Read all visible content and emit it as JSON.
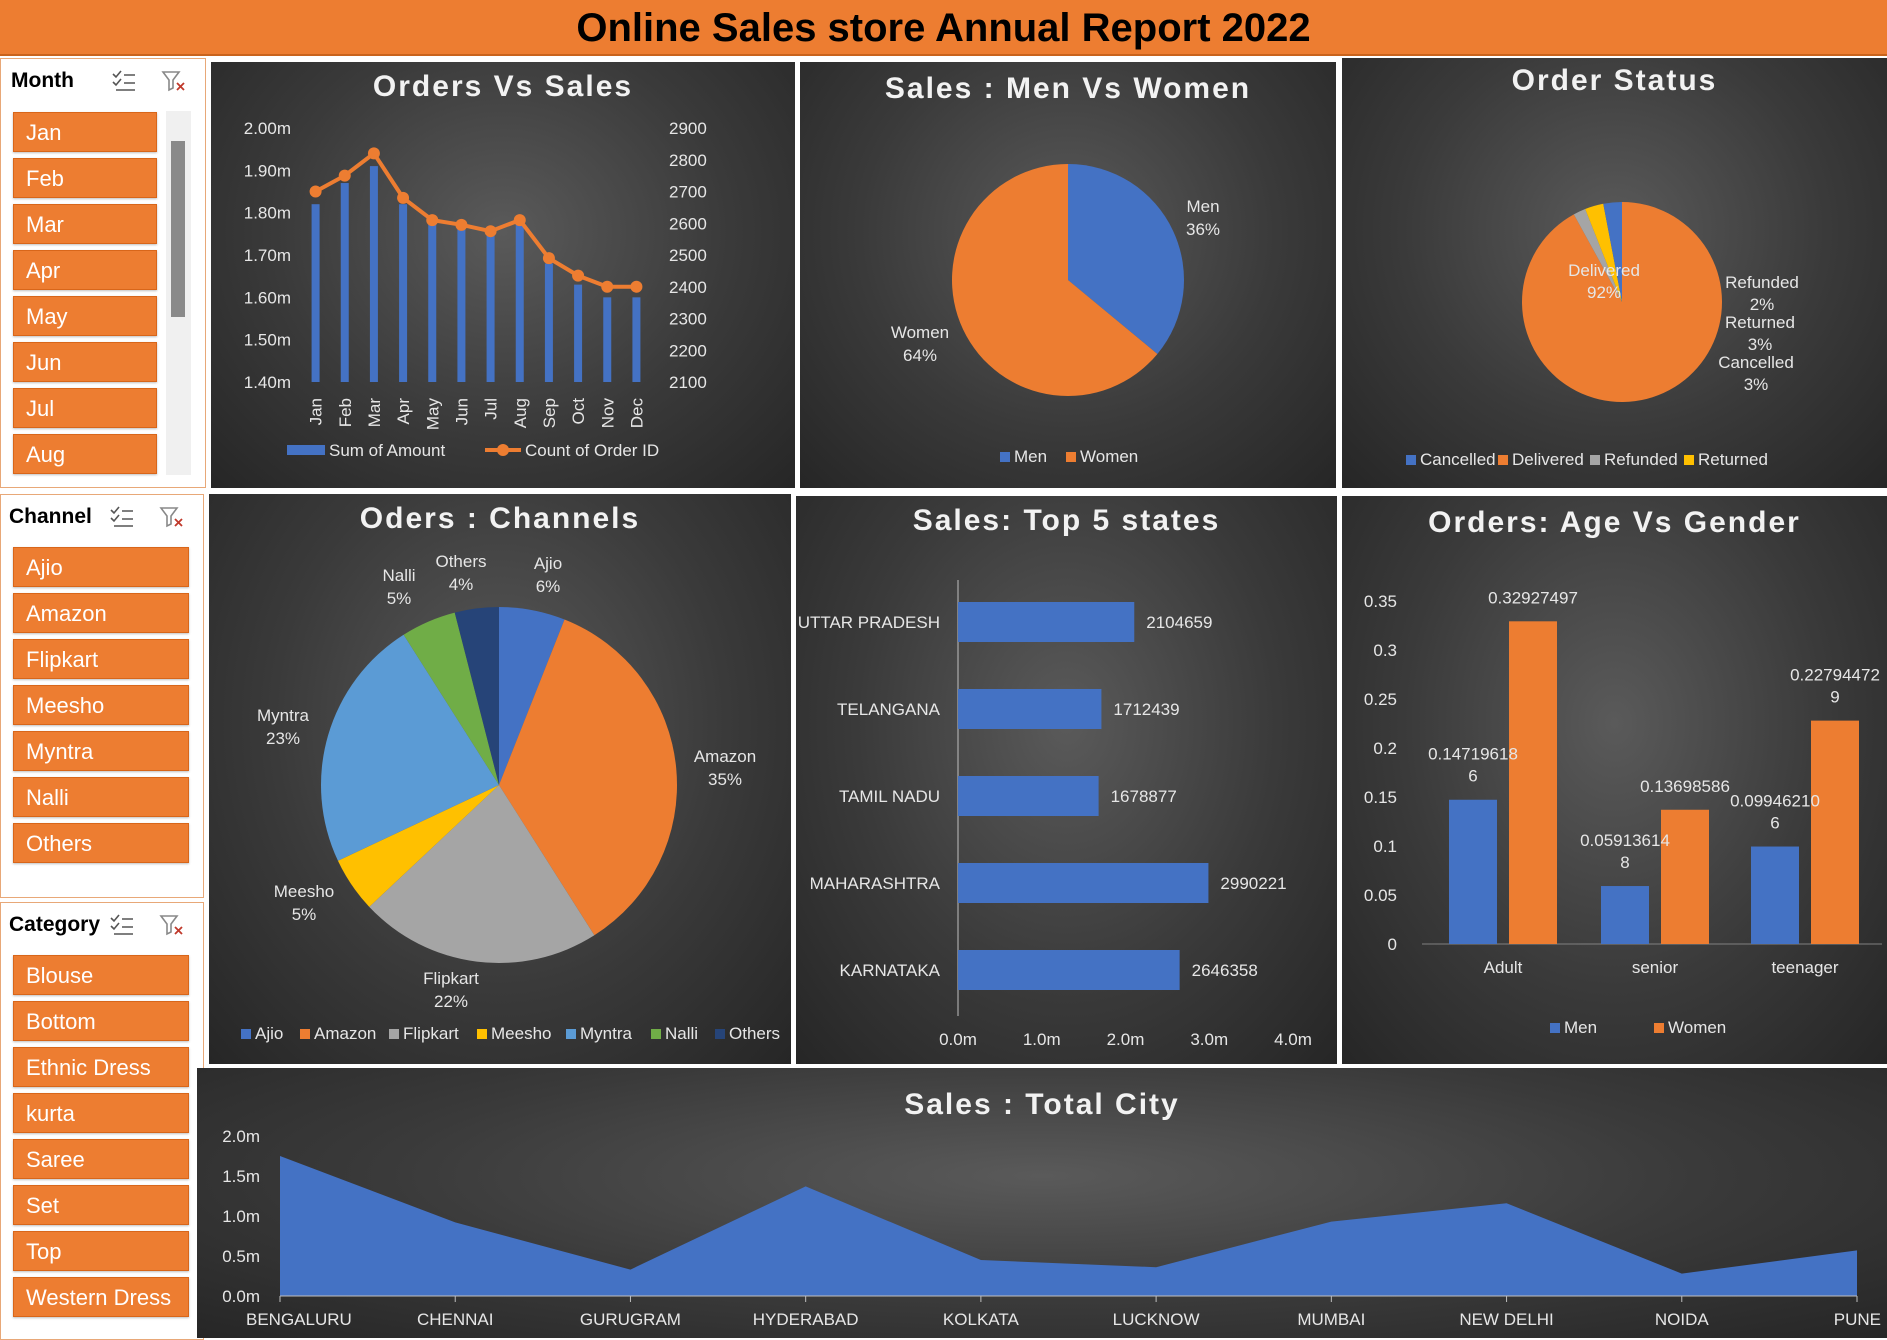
{
  "report_title": "Online Sales store Annual Report 2022",
  "colors": {
    "orange": "#ed7d31",
    "blue": "#4472c4",
    "gray": "#a5a5a5",
    "yellow": "#ffc000",
    "light_blue": "#5b9bd5",
    "green": "#70ad47",
    "dark_blue": "#264478"
  },
  "slicers": {
    "month": {
      "title": "Month",
      "items": [
        "Jan",
        "Feb",
        "Mar",
        "Apr",
        "May",
        "Jun",
        "Jul",
        "Aug"
      ]
    },
    "channel": {
      "title": "Channel",
      "items": [
        "Ajio",
        "Amazon",
        "Flipkart",
        "Meesho",
        "Myntra",
        "Nalli",
        "Others"
      ]
    },
    "category": {
      "title": "Category",
      "items": [
        "Blouse",
        "Bottom",
        "Ethnic Dress",
        "kurta",
        "Saree",
        "Set",
        "Top",
        "Western Dress"
      ]
    },
    "icons": [
      "multi-select-icon",
      "clear-filter-icon"
    ]
  },
  "chart_data": [
    {
      "id": "orders_vs_sales",
      "type": "bar",
      "title": "Orders Vs Sales",
      "categories": [
        "Jan",
        "Feb",
        "Mar",
        "Apr",
        "May",
        "Jun",
        "Jul",
        "Aug",
        "Sep",
        "Oct",
        "Nov",
        "Dec"
      ],
      "series": [
        {
          "name": "Sum of Amount",
          "type": "bar",
          "axis": "left",
          "values": [
            1.82,
            1.87,
            1.91,
            1.82,
            1.78,
            1.76,
            1.75,
            1.79,
            1.68,
            1.63,
            1.6,
            1.6
          ]
        },
        {
          "name": "Count of Order ID",
          "type": "line",
          "axis": "right",
          "values": [
            2700,
            2750,
            2820,
            2680,
            2610,
            2595,
            2575,
            2610,
            2490,
            2435,
            2400,
            2400
          ]
        }
      ],
      "y_left": {
        "ticks": [
          "1.40m",
          "1.50m",
          "1.60m",
          "1.70m",
          "1.80m",
          "1.90m",
          "2.00m"
        ],
        "range": [
          1.4,
          2.0
        ]
      },
      "y_right": {
        "ticks": [
          "2100",
          "2200",
          "2300",
          "2400",
          "2500",
          "2600",
          "2700",
          "2800",
          "2900"
        ],
        "range": [
          2100,
          2900
        ]
      },
      "legend_position": "bottom"
    },
    {
      "id": "sales_men_women",
      "type": "pie",
      "title": "Sales : Men Vs Women",
      "slices": [
        {
          "label": "Men",
          "value": 36,
          "pct": "36%",
          "color": "#4472c4"
        },
        {
          "label": "Women",
          "value": 64,
          "pct": "64%",
          "color": "#ed7d31"
        }
      ],
      "legend_position": "bottom"
    },
    {
      "id": "order_status",
      "type": "pie",
      "title": "Order Status",
      "slices": [
        {
          "label": "Delivered",
          "value": 92,
          "pct": "92%",
          "color": "#ed7d31"
        },
        {
          "label": "Refunded",
          "value": 2,
          "pct": "2%",
          "color": "#a5a5a5"
        },
        {
          "label": "Returned",
          "value": 3,
          "pct": "3%",
          "color": "#ffc000"
        },
        {
          "label": "Cancelled",
          "value": 3,
          "pct": "3%",
          "color": "#4472c4"
        }
      ],
      "legend": [
        "Cancelled",
        "Delivered",
        "Refunded",
        "Returned"
      ],
      "legend_position": "bottom"
    },
    {
      "id": "orders_channels",
      "type": "pie",
      "title": "Oders : Channels",
      "slices": [
        {
          "label": "Ajio",
          "value": 6,
          "pct": "6%",
          "color": "#4472c4"
        },
        {
          "label": "Amazon",
          "value": 35,
          "pct": "35%",
          "color": "#ed7d31"
        },
        {
          "label": "Flipkart",
          "value": 22,
          "pct": "22%",
          "color": "#a5a5a5"
        },
        {
          "label": "Meesho",
          "value": 5,
          "pct": "5%",
          "color": "#ffc000"
        },
        {
          "label": "Myntra",
          "value": 23,
          "pct": "23%",
          "color": "#5b9bd5"
        },
        {
          "label": "Nalli",
          "value": 5,
          "pct": "5%",
          "color": "#70ad47"
        },
        {
          "label": "Others",
          "value": 4,
          "pct": "4%",
          "color": "#264478"
        }
      ],
      "legend_position": "bottom"
    },
    {
      "id": "top5_states",
      "type": "bar",
      "orientation": "horizontal",
      "title": "Sales: Top 5 states",
      "categories": [
        "UTTAR PRADESH",
        "TELANGANA",
        "TAMIL NADU",
        "MAHARASHTRA",
        "KARNATAKA"
      ],
      "values": [
        2104659,
        1712439,
        1678877,
        2990221,
        2646358
      ],
      "x_ticks": [
        "0.0m",
        "1.0m",
        "2.0m",
        "3.0m",
        "4.0m"
      ],
      "x_range": [
        0,
        4000000
      ]
    },
    {
      "id": "age_vs_gender",
      "type": "bar",
      "title": "Orders: Age Vs Gender",
      "categories": [
        "Adult",
        "senior",
        "teenager"
      ],
      "series": [
        {
          "name": "Men",
          "values": [
            0.147196186,
            0.059136148,
            0.099462106
          ],
          "labels": [
            "0.14719618\n6",
            "0.05913614\n8",
            "0.09946210\n6"
          ],
          "color": "#4472c4"
        },
        {
          "name": "Women",
          "values": [
            0.32927497,
            0.13698586,
            0.227944729
          ],
          "labels": [
            "0.32927497",
            "0.13698586",
            "0.22794472\n9"
          ],
          "color": "#ed7d31"
        }
      ],
      "y_ticks": [
        "0",
        "0.05",
        "0.1",
        "0.15",
        "0.2",
        "0.25",
        "0.3",
        "0.35"
      ],
      "ylim": [
        0,
        0.35
      ],
      "legend_position": "bottom"
    },
    {
      "id": "sales_total_city",
      "type": "area",
      "title": "Sales : Total City",
      "categories": [
        "BENGALURU",
        "CHENNAI",
        "GURUGRAM",
        "HYDERABAD",
        "KOLKATA",
        "LUCKNOW",
        "MUMBAI",
        "NEW DELHI",
        "NOIDA",
        "PUNE"
      ],
      "values": [
        1.75,
        0.92,
        0.33,
        1.37,
        0.45,
        0.36,
        0.93,
        1.16,
        0.28,
        0.57
      ],
      "y_ticks": [
        "0.0m",
        "0.5m",
        "1.0m",
        "1.5m",
        "2.0m"
      ],
      "ylim": [
        0,
        2.0
      ]
    }
  ]
}
